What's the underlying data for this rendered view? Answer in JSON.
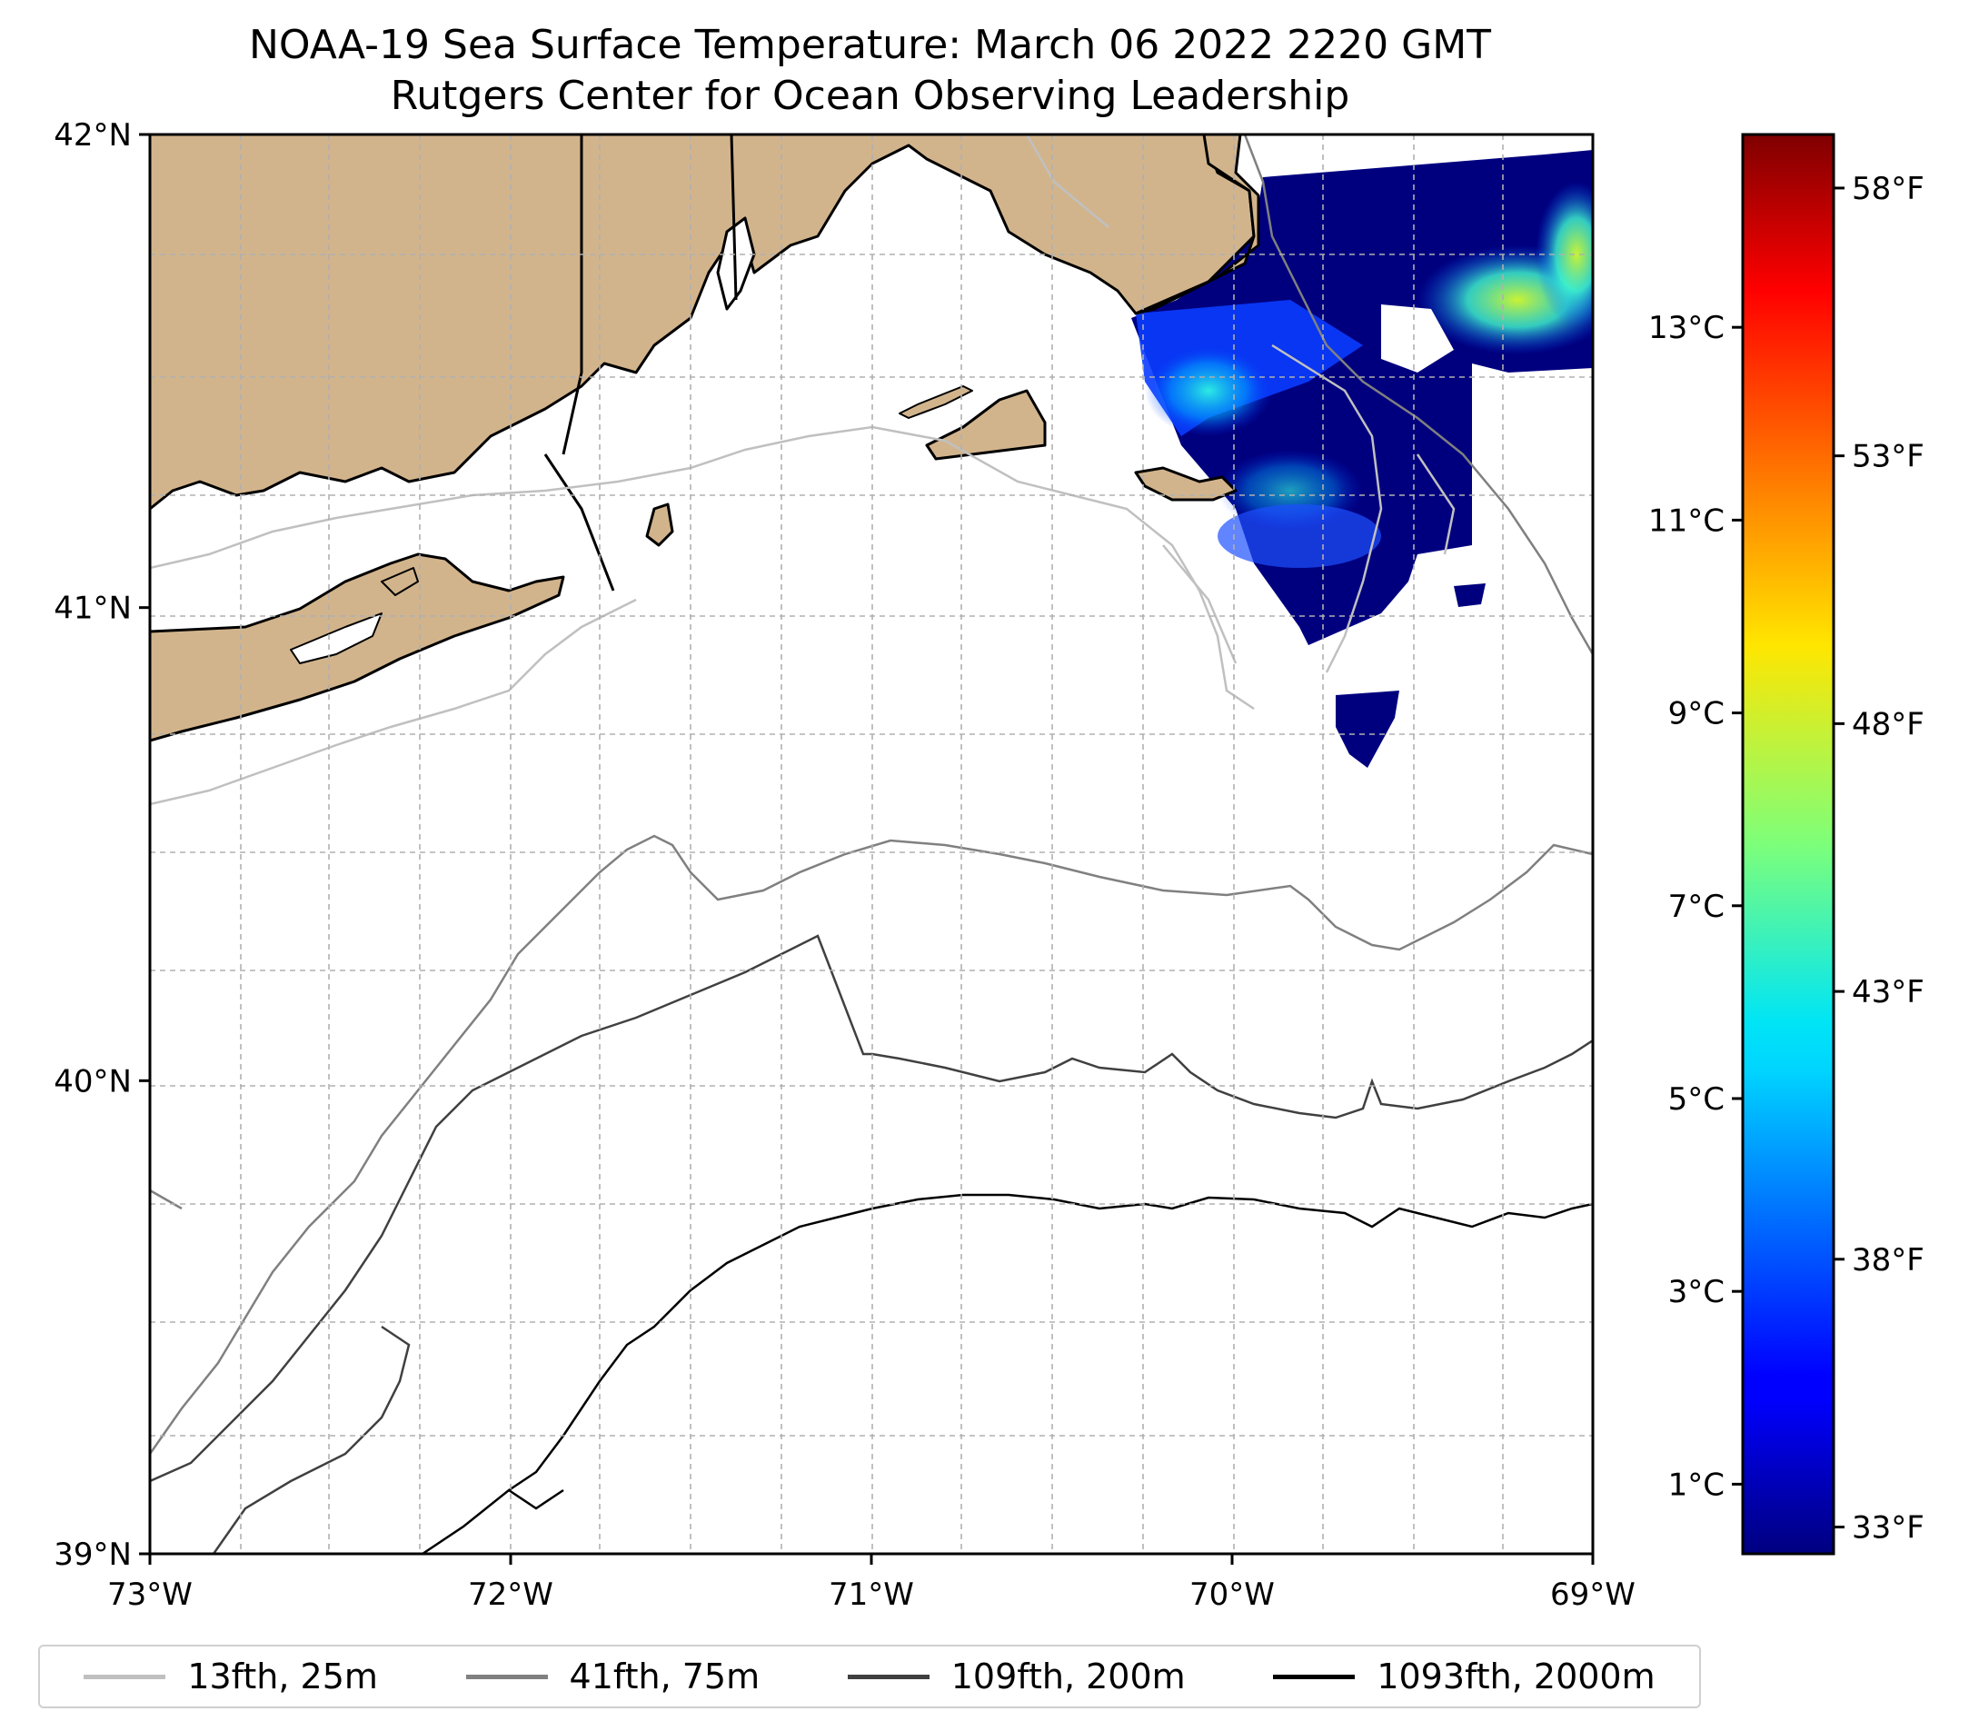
{
  "title": {
    "line1": "NOAA-19 Sea Surface Temperature: March 06 2022 2220 GMT",
    "line2": "Rutgers Center for Ocean Observing Leadership"
  },
  "map": {
    "lon_range": [
      -73,
      -69
    ],
    "lat_range": [
      39,
      42
    ],
    "lon_ticks": [
      {
        "value": -73,
        "label": "73°W"
      },
      {
        "value": -72,
        "label": "72°W"
      },
      {
        "value": -71,
        "label": "71°W"
      },
      {
        "value": -70,
        "label": "70°W"
      },
      {
        "value": -69,
        "label": "69°W"
      }
    ],
    "lat_ticks": [
      {
        "value": 42,
        "label": "42°N"
      },
      {
        "value": 41,
        "label": "41°N"
      },
      {
        "value": 40,
        "label": "40°N"
      },
      {
        "value": 39,
        "label": "39°N"
      }
    ],
    "gridlines": true,
    "land_color": "#d2b48c",
    "ocean_color": "#ffffff"
  },
  "colorbar": {
    "colormap": "jet",
    "celsius_ticks": [
      {
        "value": 1,
        "label": "1°C"
      },
      {
        "value": 3,
        "label": "3°C"
      },
      {
        "value": 5,
        "label": "5°C"
      },
      {
        "value": 7,
        "label": "7°C"
      },
      {
        "value": 9,
        "label": "9°C"
      },
      {
        "value": 11,
        "label": "11°C"
      },
      {
        "value": 13,
        "label": "13°C"
      }
    ],
    "fahrenheit_ticks": [
      {
        "value": 33,
        "label": "33°F"
      },
      {
        "value": 38,
        "label": "38°F"
      },
      {
        "value": 43,
        "label": "43°F"
      },
      {
        "value": 48,
        "label": "48°F"
      },
      {
        "value": 53,
        "label": "53°F"
      },
      {
        "value": 58,
        "label": "58°F"
      }
    ],
    "range_f": [
      32.5,
      59
    ]
  },
  "legend": {
    "items": [
      {
        "label": "13fth, 25m",
        "color": "#c0c0c0"
      },
      {
        "label": "41fth, 75m",
        "color": "#808080"
      },
      {
        "label": "109fth, 200m",
        "color": "#404040"
      },
      {
        "label": "1093fth, 2000m",
        "color": "#000000"
      }
    ]
  }
}
